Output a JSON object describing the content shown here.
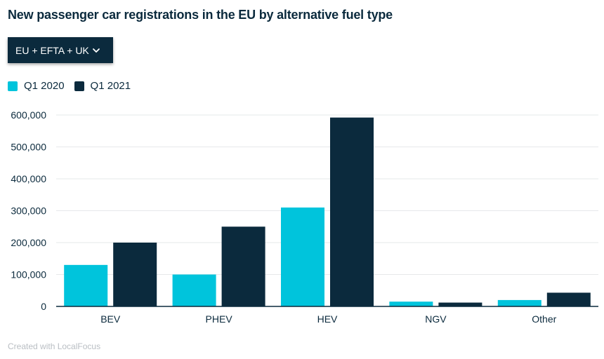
{
  "header": {
    "title": "New passenger car registrations in the EU by alternative fuel type"
  },
  "filter": {
    "selected": "EU + EFTA + UK",
    "icon": "chevron-down-icon"
  },
  "colors": {
    "q1_2020": "#00c4dc",
    "q1_2021": "#0b2a3d",
    "grid": "#e6e8ea",
    "axis": "#0b2a3d"
  },
  "chart_data": {
    "type": "bar",
    "title": "New passenger car registrations in the EU by alternative fuel type",
    "xlabel": "",
    "ylabel": "",
    "categories": [
      "BEV",
      "PHEV",
      "HEV",
      "NGV",
      "Other"
    ],
    "series": [
      {
        "name": "Q1 2020",
        "values": [
          130000,
          100000,
          310000,
          15000,
          20000
        ]
      },
      {
        "name": "Q1 2021",
        "values": [
          200000,
          250000,
          592000,
          12000,
          43000
        ]
      }
    ],
    "ylim": [
      0,
      600000
    ],
    "yticks": [
      0,
      100000,
      200000,
      300000,
      400000,
      500000,
      600000
    ],
    "ytick_labels": [
      "0",
      "100,000",
      "200,000",
      "300,000",
      "400,000",
      "500,000",
      "600,000"
    ],
    "grid": true,
    "legend": "top-left"
  },
  "footer": {
    "credit": "Created with LocalFocus"
  }
}
